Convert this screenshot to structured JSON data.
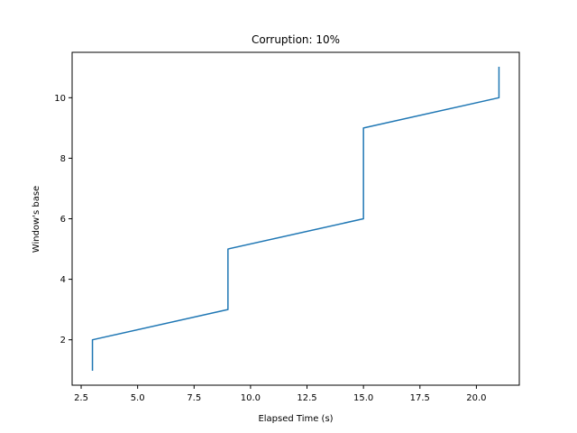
{
  "chart_data": {
    "type": "line",
    "title": "Corruption: 10%",
    "xlabel": "Elapsed Time (s)",
    "ylabel": "Window's base",
    "xlim": [
      2.1,
      21.9
    ],
    "ylim": [
      0.5,
      11.5
    ],
    "xticks": [
      2.5,
      5.0,
      7.5,
      10.0,
      12.5,
      15.0,
      17.5,
      20.0
    ],
    "xtick_labels": [
      "2.5",
      "5.0",
      "7.5",
      "10.0",
      "12.5",
      "15.0",
      "17.5",
      "20.0"
    ],
    "yticks": [
      2,
      4,
      6,
      8,
      10
    ],
    "ytick_labels": [
      "2",
      "4",
      "6",
      "8",
      "10"
    ],
    "grid": false,
    "legend": "none",
    "series": [
      {
        "color": "#1f77b4",
        "x": [
          3,
          3,
          9,
          9,
          15,
          15,
          21,
          21
        ],
        "y": [
          1,
          2,
          3,
          5,
          6,
          9,
          10,
          11
        ]
      }
    ]
  }
}
